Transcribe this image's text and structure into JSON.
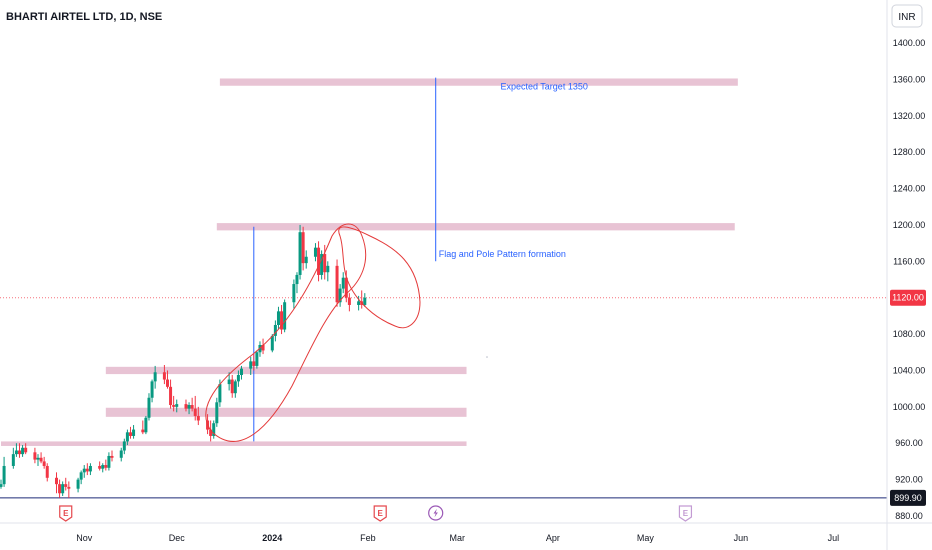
{
  "chart_data": {
    "type": "candlestick",
    "title": "BHARTI AIRTEL LTD, 1D, NSE",
    "currency_button": "INR",
    "y_axis": {
      "ylim": [
        870,
        1420
      ],
      "ticks": [
        1400,
        1360,
        1320,
        1280,
        1240,
        1200,
        1160,
        1080,
        1040,
        1000,
        960,
        920,
        880
      ],
      "tick_labels": [
        "1400.00",
        "1360.00",
        "1320.00",
        "1280.00",
        "1240.00",
        "1200.00",
        "1160.00",
        "1080.00",
        "1040.00",
        "1000.00",
        "960.00",
        "920.00",
        "880.00"
      ]
    },
    "x_axis": {
      "labels": [
        {
          "text": "Nov",
          "date": "2023-11-01",
          "bold": false
        },
        {
          "text": "Dec",
          "date": "2023-12-01",
          "bold": false
        },
        {
          "text": "2024",
          "date": "2024-01-01",
          "bold": true
        },
        {
          "text": "Feb",
          "date": "2024-02-01",
          "bold": false
        },
        {
          "text": "Mar",
          "date": "2024-03-01",
          "bold": false
        },
        {
          "text": "Apr",
          "date": "2024-04-01",
          "bold": false
        },
        {
          "text": "May",
          "date": "2024-05-01",
          "bold": false
        },
        {
          "text": "Jun",
          "date": "2024-06-01",
          "bold": false
        },
        {
          "text": "Jul",
          "date": "2024-07-01",
          "bold": false
        }
      ]
    },
    "price_labels": {
      "last_price": {
        "value": 1120,
        "text": "1120.00",
        "color": "#f23645"
      },
      "low_line": {
        "value": 899.9,
        "text": "899.90",
        "color": "#131722"
      }
    },
    "event_markers": [
      {
        "type": "earnings",
        "glyph": "E",
        "date": "2023-10-26",
        "color": "#e5484d"
      },
      {
        "type": "earnings",
        "glyph": "E",
        "date": "2024-02-05",
        "color": "#e5484d"
      },
      {
        "type": "dividend",
        "glyph": "⚡",
        "date": "2024-02-23",
        "color": "#9b59b6"
      },
      {
        "type": "earnings",
        "glyph": "E",
        "date": "2024-05-14",
        "color": "#c39bd3"
      }
    ],
    "zones": [
      {
        "date_start": "2023-12-15",
        "date_end": "2024-05-31",
        "low": 1353,
        "high": 1361
      },
      {
        "date_start": "2023-12-14",
        "date_end": "2024-05-30",
        "low": 1194,
        "high": 1202
      },
      {
        "date_start": "2023-11-08",
        "date_end": "2024-03-04",
        "low": 1036,
        "high": 1044
      },
      {
        "date_start": "2023-11-08",
        "date_end": "2024-03-04",
        "low": 989,
        "high": 999
      },
      {
        "date_start": "2023-10-05",
        "date_end": "2024-03-04",
        "low": 957,
        "high": 962
      }
    ],
    "vertical_lines": [
      {
        "date": "2023-12-26",
        "from": 962,
        "to": 1198
      },
      {
        "date": "2024-02-23",
        "from": 1160,
        "to": 1362
      }
    ],
    "annotations": [
      {
        "text": "Expected Target 1350",
        "date": "2024-03-15",
        "value": 1349
      },
      {
        "text": "Flag and Pole Pattern formation",
        "date": "2024-02-24",
        "value": 1165
      }
    ],
    "candles_date_start": "2023-10-05",
    "candles": [
      {
        "open": 912,
        "high": 920,
        "low": 910,
        "close": 915,
        "close_up": true
      },
      {
        "open": 915,
        "high": 945,
        "low": 912,
        "close": 935,
        "close_up": true
      },
      {
        "open": 935,
        "high": 955,
        "low": 932,
        "close": 948,
        "close_up": true
      },
      {
        "open": 948,
        "high": 960,
        "low": 945,
        "close": 952,
        "close_up": true
      },
      {
        "open": 952,
        "high": 960,
        "low": 944,
        "close": 948,
        "close_up": false
      },
      {
        "open": 948,
        "high": 958,
        "low": 945,
        "close": 955,
        "close_up": true
      },
      {
        "open": 955,
        "high": 960,
        "low": 948,
        "close": 950,
        "close_up": false
      },
      {
        "open": 950,
        "high": 955,
        "low": 938,
        "close": 942,
        "close_up": false
      },
      {
        "open": 942,
        "high": 948,
        "low": 935,
        "close": 944,
        "close_up": true
      },
      {
        "open": 944,
        "high": 950,
        "low": 938,
        "close": 940,
        "close_up": false
      },
      {
        "open": 940,
        "high": 945,
        "low": 932,
        "close": 935,
        "close_up": false
      },
      {
        "open": 935,
        "high": 938,
        "low": 918,
        "close": 922,
        "close_up": false
      },
      {
        "open": 922,
        "high": 928,
        "low": 905,
        "close": 915,
        "close_up": false
      },
      {
        "open": 915,
        "high": 920,
        "low": 900,
        "close": 905,
        "close_up": false
      },
      {
        "open": 905,
        "high": 918,
        "low": 902,
        "close": 915,
        "close_up": true
      },
      {
        "open": 915,
        "high": 922,
        "low": 908,
        "close": 912,
        "close_up": false
      },
      {
        "open": 912,
        "high": 918,
        "low": 899.9,
        "close": 910,
        "close_up": false
      },
      {
        "open": 910,
        "high": 922,
        "low": 906,
        "close": 920,
        "close_up": true
      },
      {
        "open": 920,
        "high": 930,
        "low": 915,
        "close": 928,
        "close_up": true
      },
      {
        "open": 928,
        "high": 936,
        "low": 922,
        "close": 932,
        "close_up": true
      },
      {
        "open": 932,
        "high": 938,
        "low": 925,
        "close": 929,
        "close_up": false
      },
      {
        "open": 929,
        "high": 938,
        "low": 925,
        "close": 935,
        "close_up": true
      },
      {
        "open": 935,
        "high": 940,
        "low": 930,
        "close": 932,
        "close_up": false
      },
      {
        "open": 932,
        "high": 938,
        "low": 928,
        "close": 936,
        "close_up": true
      },
      {
        "open": 936,
        "high": 942,
        "low": 930,
        "close": 933,
        "close_up": false
      },
      {
        "open": 933,
        "high": 950,
        "low": 930,
        "close": 946,
        "close_up": true
      },
      {
        "open": 946,
        "high": 952,
        "low": 940,
        "close": 944,
        "close_up": false
      },
      {
        "open": 944,
        "high": 955,
        "low": 940,
        "close": 952,
        "close_up": true
      },
      {
        "open": 952,
        "high": 965,
        "low": 948,
        "close": 962,
        "close_up": true
      },
      {
        "open": 962,
        "high": 975,
        "low": 958,
        "close": 972,
        "close_up": true
      },
      {
        "open": 972,
        "high": 978,
        "low": 965,
        "close": 968,
        "close_up": false
      },
      {
        "open": 968,
        "high": 980,
        "low": 965,
        "close": 975,
        "close_up": true
      },
      {
        "open": 975,
        "high": 985,
        "low": 970,
        "close": 972,
        "close_up": false
      },
      {
        "open": 972,
        "high": 990,
        "low": 970,
        "close": 988,
        "close_up": true
      },
      {
        "open": 988,
        "high": 1015,
        "low": 985,
        "close": 1010,
        "close_up": true
      },
      {
        "open": 1010,
        "high": 1030,
        "low": 1005,
        "close": 1028,
        "close_up": true
      },
      {
        "open": 1028,
        "high": 1045,
        "low": 1020,
        "close": 1038,
        "close_up": true
      },
      {
        "open": 1038,
        "high": 1046,
        "low": 1025,
        "close": 1030,
        "close_up": false
      },
      {
        "open": 1030,
        "high": 1040,
        "low": 1020,
        "close": 1022,
        "close_up": false
      },
      {
        "open": 1022,
        "high": 1030,
        "low": 998,
        "close": 1002,
        "close_up": false
      },
      {
        "open": 1002,
        "high": 1012,
        "low": 995,
        "close": 1000,
        "close_up": false
      },
      {
        "open": 1000,
        "high": 1008,
        "low": 994,
        "close": 1003,
        "close_up": true
      },
      {
        "open": 1003,
        "high": 1008,
        "low": 995,
        "close": 998,
        "close_up": false
      },
      {
        "open": 998,
        "high": 1005,
        "low": 992,
        "close": 1002,
        "close_up": true
      },
      {
        "open": 1002,
        "high": 1010,
        "low": 995,
        "close": 998,
        "close_up": false
      },
      {
        "open": 998,
        "high": 1012,
        "low": 985,
        "close": 990,
        "close_up": false
      },
      {
        "open": 990,
        "high": 1000,
        "low": 980,
        "close": 985,
        "close_up": false
      },
      {
        "open": 985,
        "high": 992,
        "low": 970,
        "close": 975,
        "close_up": false
      },
      {
        "open": 975,
        "high": 985,
        "low": 962,
        "close": 968,
        "close_up": false
      },
      {
        "open": 968,
        "high": 985,
        "low": 965,
        "close": 982,
        "close_up": true
      },
      {
        "open": 982,
        "high": 1010,
        "low": 978,
        "close": 1005,
        "close_up": true
      },
      {
        "open": 1005,
        "high": 1030,
        "low": 1000,
        "close": 1025,
        "close_up": true
      },
      {
        "open": 1025,
        "high": 1038,
        "low": 1018,
        "close": 1030,
        "close_up": true
      },
      {
        "open": 1030,
        "high": 1035,
        "low": 1010,
        "close": 1015,
        "close_up": false
      },
      {
        "open": 1015,
        "high": 1030,
        "low": 1010,
        "close": 1028,
        "close_up": true
      },
      {
        "open": 1028,
        "high": 1040,
        "low": 1022,
        "close": 1035,
        "close_up": true
      },
      {
        "open": 1035,
        "high": 1045,
        "low": 1030,
        "close": 1042,
        "close_up": true
      },
      {
        "open": 1042,
        "high": 1055,
        "low": 1035,
        "close": 1050,
        "close_up": true
      },
      {
        "open": 1050,
        "high": 1058,
        "low": 1040,
        "close": 1045,
        "close_up": false
      },
      {
        "open": 1045,
        "high": 1062,
        "low": 1042,
        "close": 1060,
        "close_up": true
      },
      {
        "open": 1060,
        "high": 1072,
        "low": 1055,
        "close": 1068,
        "close_up": true
      },
      {
        "open": 1068,
        "high": 1075,
        "low": 1058,
        "close": 1062,
        "close_up": false
      },
      {
        "open": 1062,
        "high": 1080,
        "low": 1060,
        "close": 1078,
        "close_up": true
      },
      {
        "open": 1078,
        "high": 1095,
        "low": 1072,
        "close": 1090,
        "close_up": true
      },
      {
        "open": 1090,
        "high": 1110,
        "low": 1085,
        "close": 1105,
        "close_up": true
      },
      {
        "open": 1105,
        "high": 1112,
        "low": 1080,
        "close": 1085,
        "close_up": false
      },
      {
        "open": 1085,
        "high": 1118,
        "low": 1082,
        "close": 1115,
        "close_up": true
      },
      {
        "open": 1115,
        "high": 1140,
        "low": 1108,
        "close": 1135,
        "close_up": true
      },
      {
        "open": 1135,
        "high": 1148,
        "low": 1125,
        "close": 1145,
        "close_up": true
      },
      {
        "open": 1145,
        "high": 1200,
        "low": 1140,
        "close": 1192,
        "close_up": true
      },
      {
        "open": 1192,
        "high": 1198,
        "low": 1150,
        "close": 1158,
        "close_up": false
      },
      {
        "open": 1158,
        "high": 1172,
        "low": 1152,
        "close": 1165,
        "close_up": true
      },
      {
        "open": 1165,
        "high": 1180,
        "low": 1160,
        "close": 1175,
        "close_up": true
      },
      {
        "open": 1175,
        "high": 1182,
        "low": 1138,
        "close": 1145,
        "close_up": false
      },
      {
        "open": 1145,
        "high": 1172,
        "low": 1140,
        "close": 1168,
        "close_up": true
      },
      {
        "open": 1168,
        "high": 1178,
        "low": 1140,
        "close": 1148,
        "close_up": false
      },
      {
        "open": 1148,
        "high": 1160,
        "low": 1138,
        "close": 1155,
        "close_up": true
      },
      {
        "open": 1155,
        "high": 1162,
        "low": 1110,
        "close": 1115,
        "close_up": false
      },
      {
        "open": 1115,
        "high": 1135,
        "low": 1110,
        "close": 1130,
        "close_up": true
      },
      {
        "open": 1130,
        "high": 1148,
        "low": 1125,
        "close": 1142,
        "close_up": true
      },
      {
        "open": 1142,
        "high": 1150,
        "low": 1115,
        "close": 1120,
        "close_up": false
      },
      {
        "open": 1120,
        "high": 1125,
        "low": 1105,
        "close": 1112,
        "close_up": false
      },
      {
        "open": 1112,
        "high": 1122,
        "low": 1106,
        "close": 1116,
        "close_up": true
      },
      {
        "open": 1116,
        "high": 1128,
        "low": 1108,
        "close": 1112,
        "close_up": false
      },
      {
        "open": 1112,
        "high": 1125,
        "low": 1110,
        "close": 1120,
        "close_up": true
      }
    ]
  }
}
